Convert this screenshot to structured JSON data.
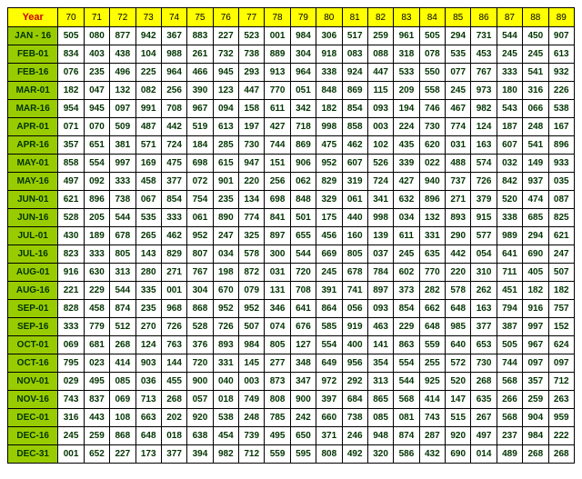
{
  "table": {
    "corner_label": "Year",
    "columns": [
      "70",
      "71",
      "72",
      "73",
      "74",
      "75",
      "76",
      "77",
      "78",
      "79",
      "80",
      "81",
      "82",
      "83",
      "84",
      "85",
      "86",
      "87",
      "88",
      "89"
    ],
    "row_labels": [
      "JAN - 16",
      "FEB-01",
      "FEB-16",
      "MAR-01",
      "MAR-16",
      "APR-01",
      "APR-16",
      "MAY-01",
      "MAY-16",
      "JUN-01",
      "JUN-16",
      "JUL-01",
      "JUL-16",
      "AUG-01",
      "AUG-16",
      "SEP-01",
      "SEP-16",
      "OCT-01",
      "OCT-16",
      "NOV-01",
      "NOV-16",
      "DEC-01",
      "DEC-16",
      "DEC-31"
    ],
    "rows": [
      [
        "505",
        "080",
        "877",
        "942",
        "367",
        "883",
        "227",
        "523",
        "001",
        "984",
        "306",
        "517",
        "259",
        "961",
        "505",
        "294",
        "731",
        "544",
        "450",
        "907"
      ],
      [
        "834",
        "403",
        "438",
        "104",
        "988",
        "261",
        "732",
        "738",
        "889",
        "304",
        "918",
        "083",
        "088",
        "318",
        "078",
        "535",
        "453",
        "245",
        "245",
        "613"
      ],
      [
        "076",
        "235",
        "496",
        "225",
        "964",
        "466",
        "945",
        "293",
        "913",
        "964",
        "338",
        "924",
        "447",
        "533",
        "550",
        "077",
        "767",
        "333",
        "541",
        "932"
      ],
      [
        "182",
        "047",
        "132",
        "082",
        "256",
        "390",
        "123",
        "447",
        "770",
        "051",
        "848",
        "869",
        "115",
        "209",
        "558",
        "245",
        "973",
        "180",
        "316",
        "226"
      ],
      [
        "954",
        "945",
        "097",
        "991",
        "708",
        "967",
        "094",
        "158",
        "611",
        "342",
        "182",
        "854",
        "093",
        "194",
        "746",
        "467",
        "982",
        "543",
        "066",
        "538"
      ],
      [
        "071",
        "070",
        "509",
        "487",
        "442",
        "519",
        "613",
        "197",
        "427",
        "718",
        "998",
        "858",
        "003",
        "224",
        "730",
        "774",
        "124",
        "187",
        "248",
        "167"
      ],
      [
        "357",
        "651",
        "381",
        "571",
        "724",
        "184",
        "285",
        "730",
        "744",
        "869",
        "475",
        "462",
        "102",
        "435",
        "620",
        "031",
        "163",
        "607",
        "541",
        "896"
      ],
      [
        "858",
        "554",
        "997",
        "169",
        "475",
        "698",
        "615",
        "947",
        "151",
        "906",
        "952",
        "607",
        "526",
        "339",
        "022",
        "488",
        "574",
        "032",
        "149",
        "933"
      ],
      [
        "497",
        "092",
        "333",
        "458",
        "377",
        "072",
        "901",
        "220",
        "256",
        "062",
        "829",
        "319",
        "724",
        "427",
        "940",
        "737",
        "726",
        "842",
        "937",
        "035"
      ],
      [
        "621",
        "896",
        "738",
        "067",
        "854",
        "754",
        "235",
        "134",
        "698",
        "848",
        "329",
        "061",
        "341",
        "632",
        "896",
        "271",
        "379",
        "520",
        "474",
        "087"
      ],
      [
        "528",
        "205",
        "544",
        "535",
        "333",
        "061",
        "890",
        "774",
        "841",
        "501",
        "175",
        "440",
        "998",
        "034",
        "132",
        "893",
        "915",
        "338",
        "685",
        "825"
      ],
      [
        "430",
        "189",
        "678",
        "265",
        "462",
        "952",
        "247",
        "325",
        "897",
        "655",
        "456",
        "160",
        "139",
        "611",
        "331",
        "290",
        "577",
        "989",
        "294",
        "621"
      ],
      [
        "823",
        "333",
        "805",
        "143",
        "829",
        "807",
        "034",
        "578",
        "300",
        "544",
        "669",
        "805",
        "037",
        "245",
        "635",
        "442",
        "054",
        "641",
        "690",
        "247"
      ],
      [
        "916",
        "630",
        "313",
        "280",
        "271",
        "767",
        "198",
        "872",
        "031",
        "720",
        "245",
        "678",
        "784",
        "602",
        "770",
        "220",
        "310",
        "711",
        "405",
        "507"
      ],
      [
        "221",
        "229",
        "544",
        "335",
        "001",
        "304",
        "670",
        "079",
        "131",
        "708",
        "391",
        "741",
        "897",
        "373",
        "282",
        "578",
        "262",
        "451",
        "182",
        "182"
      ],
      [
        "828",
        "458",
        "874",
        "235",
        "968",
        "868",
        "952",
        "952",
        "346",
        "641",
        "864",
        "056",
        "093",
        "854",
        "662",
        "648",
        "163",
        "794",
        "916",
        "757"
      ],
      [
        "333",
        "779",
        "512",
        "270",
        "726",
        "528",
        "726",
        "507",
        "074",
        "676",
        "585",
        "919",
        "463",
        "229",
        "648",
        "985",
        "377",
        "387",
        "997",
        "152"
      ],
      [
        "069",
        "681",
        "268",
        "124",
        "763",
        "376",
        "893",
        "984",
        "805",
        "127",
        "554",
        "400",
        "141",
        "863",
        "559",
        "640",
        "653",
        "505",
        "967",
        "624"
      ],
      [
        "795",
        "023",
        "414",
        "903",
        "144",
        "720",
        "331",
        "145",
        "277",
        "348",
        "649",
        "956",
        "354",
        "554",
        "255",
        "572",
        "730",
        "744",
        "097",
        "097"
      ],
      [
        "029",
        "495",
        "085",
        "036",
        "455",
        "900",
        "040",
        "003",
        "873",
        "347",
        "972",
        "292",
        "313",
        "544",
        "925",
        "520",
        "268",
        "568",
        "357",
        "712"
      ],
      [
        "743",
        "837",
        "069",
        "713",
        "268",
        "057",
        "018",
        "749",
        "808",
        "900",
        "397",
        "684",
        "865",
        "568",
        "414",
        "147",
        "635",
        "266",
        "259",
        "263"
      ],
      [
        "316",
        "443",
        "108",
        "663",
        "202",
        "920",
        "538",
        "248",
        "785",
        "242",
        "660",
        "738",
        "085",
        "081",
        "743",
        "515",
        "267",
        "568",
        "904",
        "959"
      ],
      [
        "245",
        "259",
        "868",
        "648",
        "018",
        "638",
        "454",
        "739",
        "495",
        "650",
        "371",
        "246",
        "948",
        "874",
        "287",
        "920",
        "497",
        "237",
        "984",
        "222"
      ],
      [
        "001",
        "652",
        "227",
        "173",
        "377",
        "394",
        "982",
        "712",
        "559",
        "595",
        "808",
        "492",
        "320",
        "586",
        "432",
        "690",
        "014",
        "489",
        "268",
        "268"
      ]
    ],
    "colors": {
      "header_bg": "#ffff00",
      "year_text": "#cc0000",
      "col_text": "#000000",
      "row_header_bg": "#99cc00",
      "row_header_text": "#003300",
      "data_bg": "#ffffff",
      "data_text": "#003300",
      "border": "#000000"
    },
    "font_sizes": {
      "header": 11,
      "cell": 10
    }
  }
}
